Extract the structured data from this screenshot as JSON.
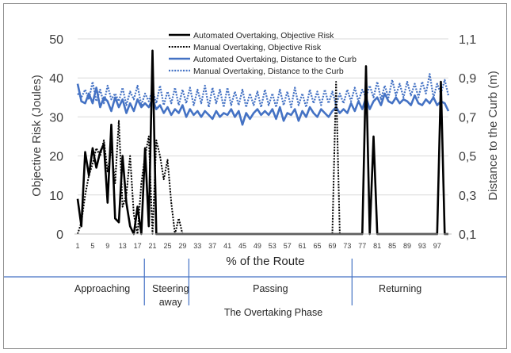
{
  "chart_data": {
    "type": "line",
    "xlabel": "% of the Route",
    "ylabel_left": "Objective Risk (Joules)",
    "ylabel_right": "Distance to the Curb (m)",
    "ylim_left": [
      0,
      50
    ],
    "ylim_right": [
      0.1,
      1.1
    ],
    "y_ticks_left": [
      "0",
      "10",
      "20",
      "30",
      "40",
      "50"
    ],
    "y_ticks_right": [
      "0,1",
      "0,3",
      "0,5",
      "0,7",
      "0,9",
      "1,1"
    ],
    "x_ticks": [
      "1",
      "5",
      "9",
      "13",
      "17",
      "21",
      "25",
      "29",
      "33",
      "37",
      "41",
      "45",
      "49",
      "53",
      "57",
      "61",
      "65",
      "69",
      "73",
      "77",
      "81",
      "85",
      "89",
      "93",
      "97"
    ],
    "grid": "horizontal",
    "legend_position": "top",
    "series": [
      {
        "name": "Automated Overtaking, Objective Risk",
        "axis": "left",
        "color": "#000000",
        "style": "solid",
        "x": [
          1,
          2,
          3,
          4,
          5,
          6,
          7,
          8,
          9,
          10,
          11,
          12,
          13,
          14,
          15,
          16,
          17,
          18,
          19,
          20,
          21,
          22,
          23,
          24,
          25,
          26,
          27,
          28,
          29,
          30,
          75,
          76,
          77,
          78,
          79,
          80,
          81,
          82,
          83,
          95,
          96,
          97,
          98,
          99,
          100
        ],
        "values": [
          9,
          2,
          21,
          15,
          22,
          17,
          21,
          23,
          8,
          28,
          4,
          3,
          20,
          8,
          2,
          0,
          7,
          0,
          22,
          2,
          47,
          0,
          0,
          0,
          0,
          0,
          0,
          0,
          0,
          0,
          0,
          0,
          0,
          43,
          0,
          25,
          0,
          0,
          0,
          0,
          0,
          0,
          39,
          0,
          0
        ]
      },
      {
        "name": "Manual Overtaking, Objective Risk",
        "axis": "left",
        "color": "#000000",
        "style": "dotted",
        "x": [
          1,
          2,
          3,
          4,
          5,
          6,
          7,
          8,
          9,
          10,
          11,
          12,
          13,
          14,
          15,
          16,
          17,
          18,
          19,
          20,
          21,
          22,
          23,
          24,
          25,
          26,
          27,
          28,
          29,
          30,
          68,
          69,
          70,
          71,
          72,
          73,
          74,
          75
        ],
        "values": [
          0,
          3,
          10,
          15,
          18,
          22,
          20,
          24,
          16,
          22,
          13,
          29,
          7,
          10,
          20,
          5,
          0,
          13,
          20,
          25,
          0,
          24,
          20,
          14,
          19,
          8,
          0,
          4,
          0,
          0,
          0,
          0,
          39,
          0,
          0,
          0,
          0,
          0
        ]
      },
      {
        "name": "Automated Overtaking, Distance to the Curb",
        "axis": "right",
        "color": "#4472C4",
        "style": "solid",
        "x": [
          1,
          2,
          3,
          4,
          5,
          6,
          7,
          8,
          9,
          10,
          11,
          12,
          13,
          14,
          15,
          16,
          17,
          18,
          19,
          20,
          21,
          22,
          23,
          24,
          25,
          26,
          27,
          28,
          29,
          30,
          31,
          32,
          33,
          34,
          35,
          36,
          37,
          38,
          39,
          40,
          41,
          42,
          43,
          44,
          45,
          46,
          47,
          48,
          49,
          50,
          51,
          52,
          53,
          54,
          55,
          56,
          57,
          58,
          59,
          60,
          61,
          62,
          63,
          64,
          65,
          66,
          67,
          68,
          69,
          70,
          71,
          72,
          73,
          74,
          75,
          76,
          77,
          78,
          79,
          80,
          81,
          82,
          83,
          84,
          85,
          86,
          87,
          88,
          89,
          90,
          91,
          92,
          93,
          94,
          95,
          96,
          97,
          98,
          99,
          100
        ],
        "values": [
          0.87,
          0.78,
          0.77,
          0.82,
          0.77,
          0.85,
          0.75,
          0.8,
          0.78,
          0.73,
          0.8,
          0.75,
          0.79,
          0.72,
          0.77,
          0.73,
          0.79,
          0.75,
          0.77,
          0.75,
          0.79,
          0.74,
          0.76,
          0.72,
          0.75,
          0.71,
          0.74,
          0.72,
          0.76,
          0.7,
          0.74,
          0.71,
          0.73,
          0.7,
          0.73,
          0.71,
          0.69,
          0.73,
          0.7,
          0.72,
          0.71,
          0.74,
          0.7,
          0.73,
          0.66,
          0.72,
          0.69,
          0.72,
          0.74,
          0.71,
          0.73,
          0.71,
          0.74,
          0.69,
          0.75,
          0.68,
          0.72,
          0.71,
          0.74,
          0.68,
          0.73,
          0.7,
          0.75,
          0.72,
          0.7,
          0.74,
          0.72,
          0.7,
          0.73,
          0.75,
          0.72,
          0.74,
          0.72,
          0.77,
          0.73,
          0.78,
          0.74,
          0.8,
          0.74,
          0.78,
          0.8,
          0.76,
          0.82,
          0.78,
          0.77,
          0.8,
          0.77,
          0.79,
          0.78,
          0.76,
          0.81,
          0.77,
          0.76,
          0.79,
          0.77,
          0.8,
          0.76,
          0.78,
          0.77,
          0.73
        ]
      },
      {
        "name": "Manual Overtaking, Distance to the Curb",
        "axis": "right",
        "color": "#4472C4",
        "style": "dotted",
        "x": [
          1,
          2,
          3,
          4,
          5,
          6,
          7,
          8,
          9,
          10,
          11,
          12,
          13,
          14,
          15,
          16,
          17,
          18,
          19,
          20,
          21,
          22,
          23,
          24,
          25,
          26,
          27,
          28,
          29,
          30,
          31,
          32,
          33,
          34,
          35,
          36,
          37,
          38,
          39,
          40,
          41,
          42,
          43,
          44,
          45,
          46,
          47,
          48,
          49,
          50,
          51,
          52,
          53,
          54,
          55,
          56,
          57,
          58,
          59,
          60,
          61,
          62,
          63,
          64,
          65,
          66,
          67,
          68,
          69,
          70,
          71,
          72,
          73,
          74,
          75,
          76,
          77,
          78,
          79,
          80,
          81,
          82,
          83,
          84,
          85,
          86,
          87,
          88,
          89,
          90,
          91,
          92,
          93,
          94,
          95,
          96,
          97,
          98,
          99,
          100
        ],
        "values": [
          0.82,
          0.8,
          0.84,
          0.79,
          0.88,
          0.78,
          0.84,
          0.77,
          0.86,
          0.79,
          0.82,
          0.78,
          0.85,
          0.76,
          0.83,
          0.79,
          0.86,
          0.76,
          0.82,
          0.78,
          0.84,
          0.77,
          0.86,
          0.76,
          0.83,
          0.77,
          0.85,
          0.76,
          0.84,
          0.77,
          0.85,
          0.76,
          0.84,
          0.77,
          0.86,
          0.75,
          0.85,
          0.77,
          0.84,
          0.75,
          0.85,
          0.76,
          0.83,
          0.76,
          0.84,
          0.75,
          0.82,
          0.76,
          0.83,
          0.75,
          0.84,
          0.76,
          0.82,
          0.75,
          0.84,
          0.76,
          0.83,
          0.75,
          0.85,
          0.76,
          0.82,
          0.75,
          0.84,
          0.77,
          0.83,
          0.76,
          0.84,
          0.77,
          0.83,
          0.76,
          0.82,
          0.77,
          0.84,
          0.78,
          0.85,
          0.78,
          0.84,
          0.8,
          0.86,
          0.8,
          0.88,
          0.79,
          0.86,
          0.8,
          0.89,
          0.81,
          0.87,
          0.8,
          0.88,
          0.81,
          0.87,
          0.8,
          0.88,
          0.82,
          0.92,
          0.8,
          0.87,
          0.82,
          0.89,
          0.81
        ]
      }
    ],
    "phase_axis_label": "The Overtaking Phase",
    "phases": [
      {
        "label": "Approaching",
        "from": 0,
        "to": 18
      },
      {
        "label": "Steering away",
        "from": 18,
        "to": 30
      },
      {
        "label": "Passing",
        "from": 30,
        "to": 74
      },
      {
        "label": "Returning",
        "from": 74,
        "to": 100
      }
    ]
  }
}
